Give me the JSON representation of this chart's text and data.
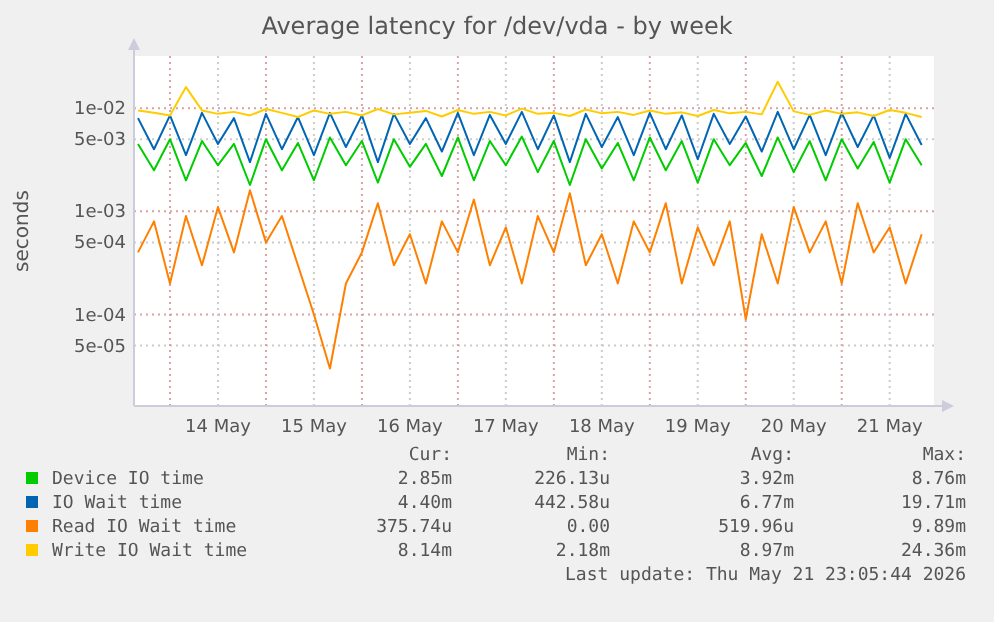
{
  "chart_data": {
    "type": "line",
    "title": "Average latency for /dev/vda - by week",
    "ylabel": "seconds",
    "log": "y",
    "grid": true,
    "legend": "bottom",
    "marker": "none",
    "line_style": "solid",
    "x": [
      "2026-05-13T16:00",
      "2026-05-13T20:00",
      "2026-05-14T00:00",
      "2026-05-14T04:00",
      "2026-05-14T08:00",
      "2026-05-14T12:00",
      "2026-05-14T16:00",
      "2026-05-14T20:00",
      "2026-05-15T00:00",
      "2026-05-15T04:00",
      "2026-05-15T08:00",
      "2026-05-15T12:00",
      "2026-05-15T16:00",
      "2026-05-15T20:00",
      "2026-05-16T00:00",
      "2026-05-16T04:00",
      "2026-05-16T08:00",
      "2026-05-16T12:00",
      "2026-05-16T16:00",
      "2026-05-16T20:00",
      "2026-05-17T00:00",
      "2026-05-17T04:00",
      "2026-05-17T08:00",
      "2026-05-17T12:00",
      "2026-05-17T16:00",
      "2026-05-17T20:00",
      "2026-05-18T00:00",
      "2026-05-18T04:00",
      "2026-05-18T08:00",
      "2026-05-18T12:00",
      "2026-05-18T16:00",
      "2026-05-18T20:00",
      "2026-05-19T00:00",
      "2026-05-19T04:00",
      "2026-05-19T08:00",
      "2026-05-19T12:00",
      "2026-05-19T16:00",
      "2026-05-19T20:00",
      "2026-05-20T00:00",
      "2026-05-20T04:00",
      "2026-05-20T08:00",
      "2026-05-20T12:00",
      "2026-05-20T16:00",
      "2026-05-20T20:00",
      "2026-05-21T00:00",
      "2026-05-21T04:00",
      "2026-05-21T08:00",
      "2026-05-21T12:00",
      "2026-05-21T16:00",
      "2026-05-21T20:00"
    ],
    "xlim": [
      "2026-05-13T15:00",
      "2026-05-21T23:05"
    ],
    "xticks": [
      {
        "value": "2026-05-14T00:00",
        "label": null
      },
      {
        "value": "2026-05-14T12:00",
        "label": "14 May"
      },
      {
        "value": "2026-05-15T00:00",
        "label": null
      },
      {
        "value": "2026-05-15T12:00",
        "label": "15 May"
      },
      {
        "value": "2026-05-16T00:00",
        "label": null
      },
      {
        "value": "2026-05-16T12:00",
        "label": "16 May"
      },
      {
        "value": "2026-05-17T00:00",
        "label": null
      },
      {
        "value": "2026-05-17T12:00",
        "label": "17 May"
      },
      {
        "value": "2026-05-18T00:00",
        "label": null
      },
      {
        "value": "2026-05-18T12:00",
        "label": "18 May"
      },
      {
        "value": "2026-05-19T00:00",
        "label": null
      },
      {
        "value": "2026-05-19T12:00",
        "label": "19 May"
      },
      {
        "value": "2026-05-20T00:00",
        "label": null
      },
      {
        "value": "2026-05-20T12:00",
        "label": "20 May"
      },
      {
        "value": "2026-05-21T00:00",
        "label": null
      },
      {
        "value": "2026-05-21T12:00",
        "label": "21 May"
      }
    ],
    "ylim": [
      1.3e-05,
      0.032
    ],
    "yticks": [
      {
        "value": 5e-05,
        "label": "5e-05"
      },
      {
        "value": 0.0001,
        "label": "1e-04"
      },
      {
        "value": 0.0005,
        "label": "5e-04"
      },
      {
        "value": 0.001,
        "label": "1e-03"
      },
      {
        "value": 0.005,
        "label": "5e-03"
      },
      {
        "value": 0.01,
        "label": "1e-02"
      }
    ],
    "series": [
      {
        "name": "Device IO time",
        "color": "#00cc00",
        "values": [
          0.0045,
          0.0025,
          0.005,
          0.002,
          0.0048,
          0.0028,
          0.0045,
          0.0018,
          0.005,
          0.0025,
          0.0046,
          0.002,
          0.0052,
          0.0028,
          0.0048,
          0.0019,
          0.005,
          0.0027,
          0.0045,
          0.0022,
          0.0052,
          0.002,
          0.0048,
          0.0028,
          0.0053,
          0.0024,
          0.0048,
          0.0018,
          0.005,
          0.0026,
          0.0046,
          0.002,
          0.0052,
          0.0025,
          0.0048,
          0.0019,
          0.005,
          0.0028,
          0.0046,
          0.0022,
          0.0052,
          0.0024,
          0.0048,
          0.002,
          0.005,
          0.0026,
          0.0047,
          0.0019,
          0.005,
          0.0028
        ]
      },
      {
        "name": "IO Wait time",
        "color": "#0066b3",
        "values": [
          0.008,
          0.004,
          0.0085,
          0.0035,
          0.009,
          0.0045,
          0.008,
          0.003,
          0.0088,
          0.004,
          0.0082,
          0.0035,
          0.009,
          0.0042,
          0.0085,
          0.003,
          0.0088,
          0.0045,
          0.008,
          0.0038,
          0.009,
          0.0035,
          0.0086,
          0.0045,
          0.0092,
          0.004,
          0.0085,
          0.003,
          0.0088,
          0.0042,
          0.0082,
          0.0035,
          0.009,
          0.004,
          0.0085,
          0.0032,
          0.0088,
          0.0045,
          0.0083,
          0.0038,
          0.0092,
          0.004,
          0.0086,
          0.0035,
          0.009,
          0.0042,
          0.0085,
          0.0033,
          0.0088,
          0.0044
        ]
      },
      {
        "name": "Read IO Wait time",
        "color": "#ff8000",
        "values": [
          0.0004,
          0.0008,
          0.0002,
          0.0009,
          0.0003,
          0.0011,
          0.0004,
          0.0016,
          0.0005,
          0.0009,
          0.0003,
          0.0001,
          3e-05,
          0.0002,
          0.0004,
          0.0012,
          0.0003,
          0.0006,
          0.0002,
          0.0008,
          0.0004,
          0.0013,
          0.0003,
          0.0007,
          0.0002,
          0.0009,
          0.0004,
          0.0015,
          0.0003,
          0.0006,
          0.0002,
          0.0008,
          0.0004,
          0.0012,
          0.0002,
          0.0007,
          0.0003,
          0.0008,
          9e-05,
          0.0006,
          0.0002,
          0.0011,
          0.0004,
          0.0008,
          0.0002,
          0.0012,
          0.0004,
          0.0007,
          0.0002,
          0.0006
        ]
      },
      {
        "name": "Write IO Wait time",
        "color": "#ffcc00",
        "values": [
          0.0095,
          0.009,
          0.0085,
          0.016,
          0.0095,
          0.0088,
          0.0092,
          0.0085,
          0.0098,
          0.009,
          0.0082,
          0.0095,
          0.0088,
          0.0092,
          0.0085,
          0.0098,
          0.0087,
          0.009,
          0.0094,
          0.0083,
          0.0096,
          0.0088,
          0.0092,
          0.0085,
          0.0099,
          0.0088,
          0.009,
          0.0084,
          0.0097,
          0.0089,
          0.0092,
          0.0086,
          0.0095,
          0.0088,
          0.0091,
          0.0084,
          0.0096,
          0.0089,
          0.0092,
          0.0087,
          0.018,
          0.0093,
          0.0086,
          0.0095,
          0.0088,
          0.0091,
          0.0084,
          0.0096,
          0.009,
          0.0082
        ]
      }
    ],
    "annotations": [
      "Cur:",
      "Min:",
      "Avg:",
      "Max:",
      "2.85m",
      "226.13u",
      "3.92m",
      "8.76m",
      "4.40m",
      "442.58u",
      "6.77m",
      "19.71m",
      "375.74u",
      "0.00",
      "519.96u",
      "9.89m",
      "8.14m",
      "2.18m",
      "8.97m",
      "24.36m",
      "Last update: Thu May 21 23:05:44 2026"
    ]
  }
}
